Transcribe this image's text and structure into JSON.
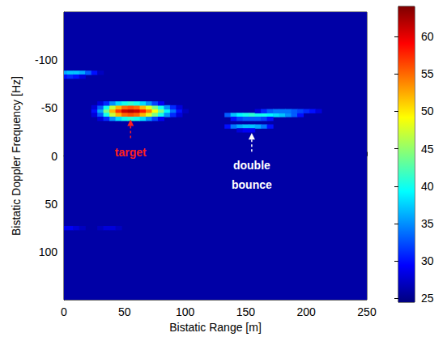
{
  "chart_data": {
    "type": "heatmap",
    "xlabel": "Bistatic Range [m]",
    "ylabel": "Bistatic Doppler Frequency [Hz]",
    "xlim": [
      0,
      250
    ],
    "xticks": [
      0,
      50,
      100,
      150,
      200,
      250
    ],
    "ylim": [
      -150,
      150
    ],
    "yticks": [
      -100,
      -50,
      0,
      50,
      100
    ],
    "cell_size": [
      5,
      4
    ],
    "other_cells_value": 26,
    "cells": [
      [
        25,
        -47,
        30
      ],
      [
        30,
        -47,
        36
      ],
      [
        35,
        -47,
        44
      ],
      [
        40,
        -47,
        52
      ],
      [
        45,
        -47,
        57
      ],
      [
        50,
        -47,
        61
      ],
      [
        55,
        -47,
        62
      ],
      [
        60,
        -47,
        61
      ],
      [
        65,
        -47,
        58
      ],
      [
        70,
        -47,
        54
      ],
      [
        75,
        -47,
        49
      ],
      [
        80,
        -47,
        44
      ],
      [
        85,
        -47,
        39
      ],
      [
        90,
        -47,
        34
      ],
      [
        95,
        -47,
        30
      ],
      [
        100,
        -47,
        27
      ],
      [
        25,
        -51,
        28
      ],
      [
        30,
        -51,
        33
      ],
      [
        35,
        -51,
        40
      ],
      [
        40,
        -51,
        47
      ],
      [
        45,
        -51,
        52
      ],
      [
        50,
        -51,
        55
      ],
      [
        55,
        -51,
        56
      ],
      [
        60,
        -51,
        55
      ],
      [
        65,
        -51,
        52
      ],
      [
        70,
        -51,
        48
      ],
      [
        75,
        -51,
        44
      ],
      [
        80,
        -51,
        40
      ],
      [
        85,
        -51,
        35
      ],
      [
        90,
        -51,
        31
      ],
      [
        95,
        -51,
        28
      ],
      [
        25,
        -43,
        28
      ],
      [
        30,
        -43,
        33
      ],
      [
        35,
        -43,
        40
      ],
      [
        40,
        -43,
        47
      ],
      [
        45,
        -43,
        52
      ],
      [
        50,
        -43,
        55
      ],
      [
        55,
        -43,
        56
      ],
      [
        60,
        -43,
        55
      ],
      [
        65,
        -43,
        52
      ],
      [
        70,
        -43,
        48
      ],
      [
        75,
        -43,
        44
      ],
      [
        80,
        -43,
        40
      ],
      [
        85,
        -43,
        35
      ],
      [
        90,
        -43,
        31
      ],
      [
        95,
        -43,
        28
      ],
      [
        30,
        -55,
        28
      ],
      [
        35,
        -55,
        31
      ],
      [
        40,
        -55,
        35
      ],
      [
        45,
        -55,
        38
      ],
      [
        50,
        -55,
        40
      ],
      [
        55,
        -55,
        41
      ],
      [
        60,
        -55,
        40
      ],
      [
        65,
        -55,
        38
      ],
      [
        70,
        -55,
        35
      ],
      [
        75,
        -55,
        32
      ],
      [
        80,
        -55,
        29
      ],
      [
        30,
        -39,
        28
      ],
      [
        35,
        -39,
        31
      ],
      [
        40,
        -39,
        35
      ],
      [
        45,
        -39,
        38
      ],
      [
        50,
        -39,
        40
      ],
      [
        55,
        -39,
        41
      ],
      [
        60,
        -39,
        40
      ],
      [
        65,
        -39,
        38
      ],
      [
        70,
        -39,
        35
      ],
      [
        75,
        -39,
        32
      ],
      [
        80,
        -39,
        29
      ],
      [
        0,
        -87,
        36
      ],
      [
        5,
        -87,
        37
      ],
      [
        10,
        -87,
        37
      ],
      [
        15,
        -87,
        36
      ],
      [
        20,
        -87,
        33
      ],
      [
        25,
        -87,
        30
      ],
      [
        30,
        -87,
        27
      ],
      [
        0,
        -83,
        30
      ],
      [
        5,
        -83,
        31
      ],
      [
        10,
        -83,
        30
      ],
      [
        15,
        -83,
        28
      ],
      [
        0,
        75,
        29
      ],
      [
        5,
        75,
        29
      ],
      [
        10,
        75,
        28
      ],
      [
        15,
        75,
        27
      ],
      [
        30,
        75,
        27
      ],
      [
        35,
        75,
        28
      ],
      [
        40,
        75,
        28
      ],
      [
        45,
        75,
        27
      ],
      [
        135,
        -43,
        33
      ],
      [
        140,
        -43,
        37
      ],
      [
        145,
        -43,
        39
      ],
      [
        150,
        -43,
        40
      ],
      [
        155,
        -43,
        41
      ],
      [
        160,
        -43,
        40
      ],
      [
        165,
        -43,
        40
      ],
      [
        170,
        -43,
        39
      ],
      [
        175,
        -43,
        38
      ],
      [
        180,
        -43,
        37
      ],
      [
        185,
        -43,
        35
      ],
      [
        190,
        -43,
        33
      ],
      [
        195,
        -43,
        30
      ],
      [
        160,
        -47,
        28
      ],
      [
        165,
        -47,
        31
      ],
      [
        170,
        -47,
        33
      ],
      [
        175,
        -47,
        34
      ],
      [
        180,
        -47,
        34
      ],
      [
        185,
        -47,
        34
      ],
      [
        190,
        -47,
        33
      ],
      [
        195,
        -47,
        32
      ],
      [
        200,
        -47,
        31
      ],
      [
        205,
        -47,
        30
      ],
      [
        210,
        -47,
        28
      ],
      [
        140,
        -39,
        30
      ],
      [
        145,
        -39,
        32
      ],
      [
        150,
        -39,
        33
      ],
      [
        155,
        -39,
        33
      ],
      [
        160,
        -39,
        33
      ],
      [
        165,
        -39,
        32
      ],
      [
        170,
        -39,
        30
      ],
      [
        135,
        -31,
        30
      ],
      [
        140,
        -31,
        34
      ],
      [
        145,
        -31,
        36
      ],
      [
        150,
        -31,
        37
      ],
      [
        155,
        -31,
        37
      ],
      [
        160,
        -31,
        36
      ],
      [
        165,
        -31,
        34
      ],
      [
        170,
        -31,
        30
      ],
      [
        145,
        -27,
        28
      ],
      [
        150,
        -27,
        29
      ],
      [
        155,
        -27,
        29
      ]
    ],
    "colorbar": {
      "lim": [
        24.5,
        64
      ],
      "ticks": [
        25,
        30,
        35,
        40,
        45,
        50,
        55,
        60
      ]
    },
    "annotations": [
      {
        "text": "target",
        "x": 55,
        "y": -38,
        "color": "#ff2020"
      },
      {
        "text": "double bounce",
        "x": 155,
        "y": -24,
        "color": "#ffffff"
      }
    ]
  }
}
